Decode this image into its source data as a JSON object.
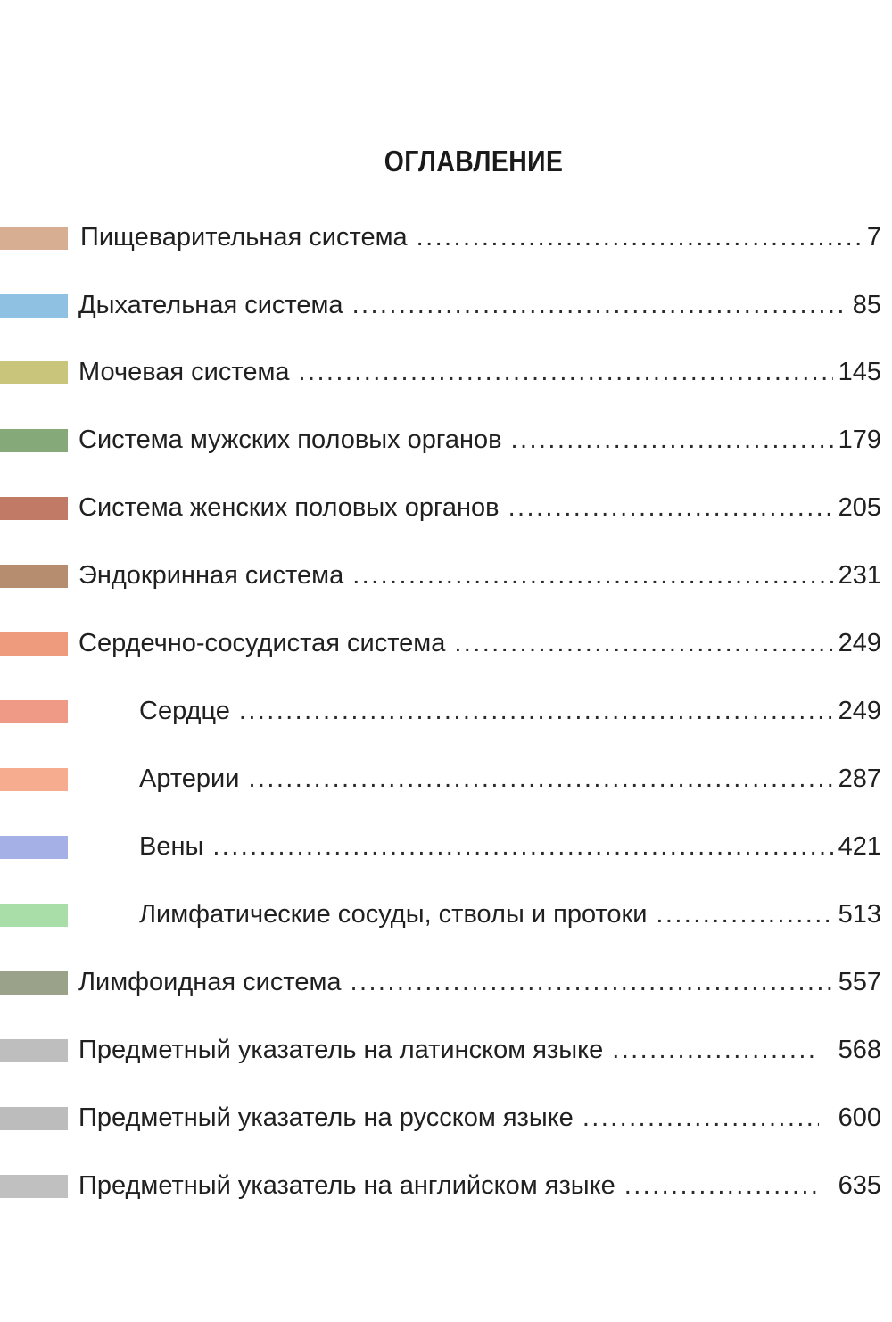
{
  "title": "ОГЛАВЛЕНИЕ",
  "leader": "...................................................................................................................................",
  "entries": [
    {
      "label": "Пищеварительная система",
      "page": "7",
      "color": "#d8ae92"
    },
    {
      "label": "Дыхательная система",
      "page": "85",
      "color": "#8fc1e3"
    },
    {
      "label": "Мочевая система",
      "page": "145",
      "color": "#c9c57a"
    },
    {
      "label": "Система мужских половых органов",
      "page": "179",
      "color": "#86a97a"
    },
    {
      "label": "Система женских половых органов",
      "page": "205",
      "color": "#c17a66"
    },
    {
      "label": "Эндокринная система",
      "page": "231",
      "color": "#b68d6e"
    },
    {
      "label": "Сердечно-сосудистая система",
      "page": "249",
      "color": "#ee9a7c"
    },
    {
      "label": "Сердце",
      "page": "249",
      "color": "#ee9a86"
    },
    {
      "label": "Артерии",
      "page": "287",
      "color": "#f6ac8e"
    },
    {
      "label": "Вены",
      "page": "421",
      "color": "#a4b0e6"
    },
    {
      "label": "Лимфатические сосуды, стволы и протоки",
      "page": "513",
      "color": "#a9dea9"
    },
    {
      "label": "Лимфоидная система",
      "page": "557",
      "color": "#9aa289"
    },
    {
      "label": "Предметный указатель на латинском языке",
      "page": "568",
      "color": "#bebebe"
    },
    {
      "label": "Предметный указатель на русском языке",
      "page": "600",
      "color": "#bcbcbc"
    },
    {
      "label": "Предметный указатель на английском языке",
      "page": "635",
      "color": "#c0c0c0"
    }
  ]
}
